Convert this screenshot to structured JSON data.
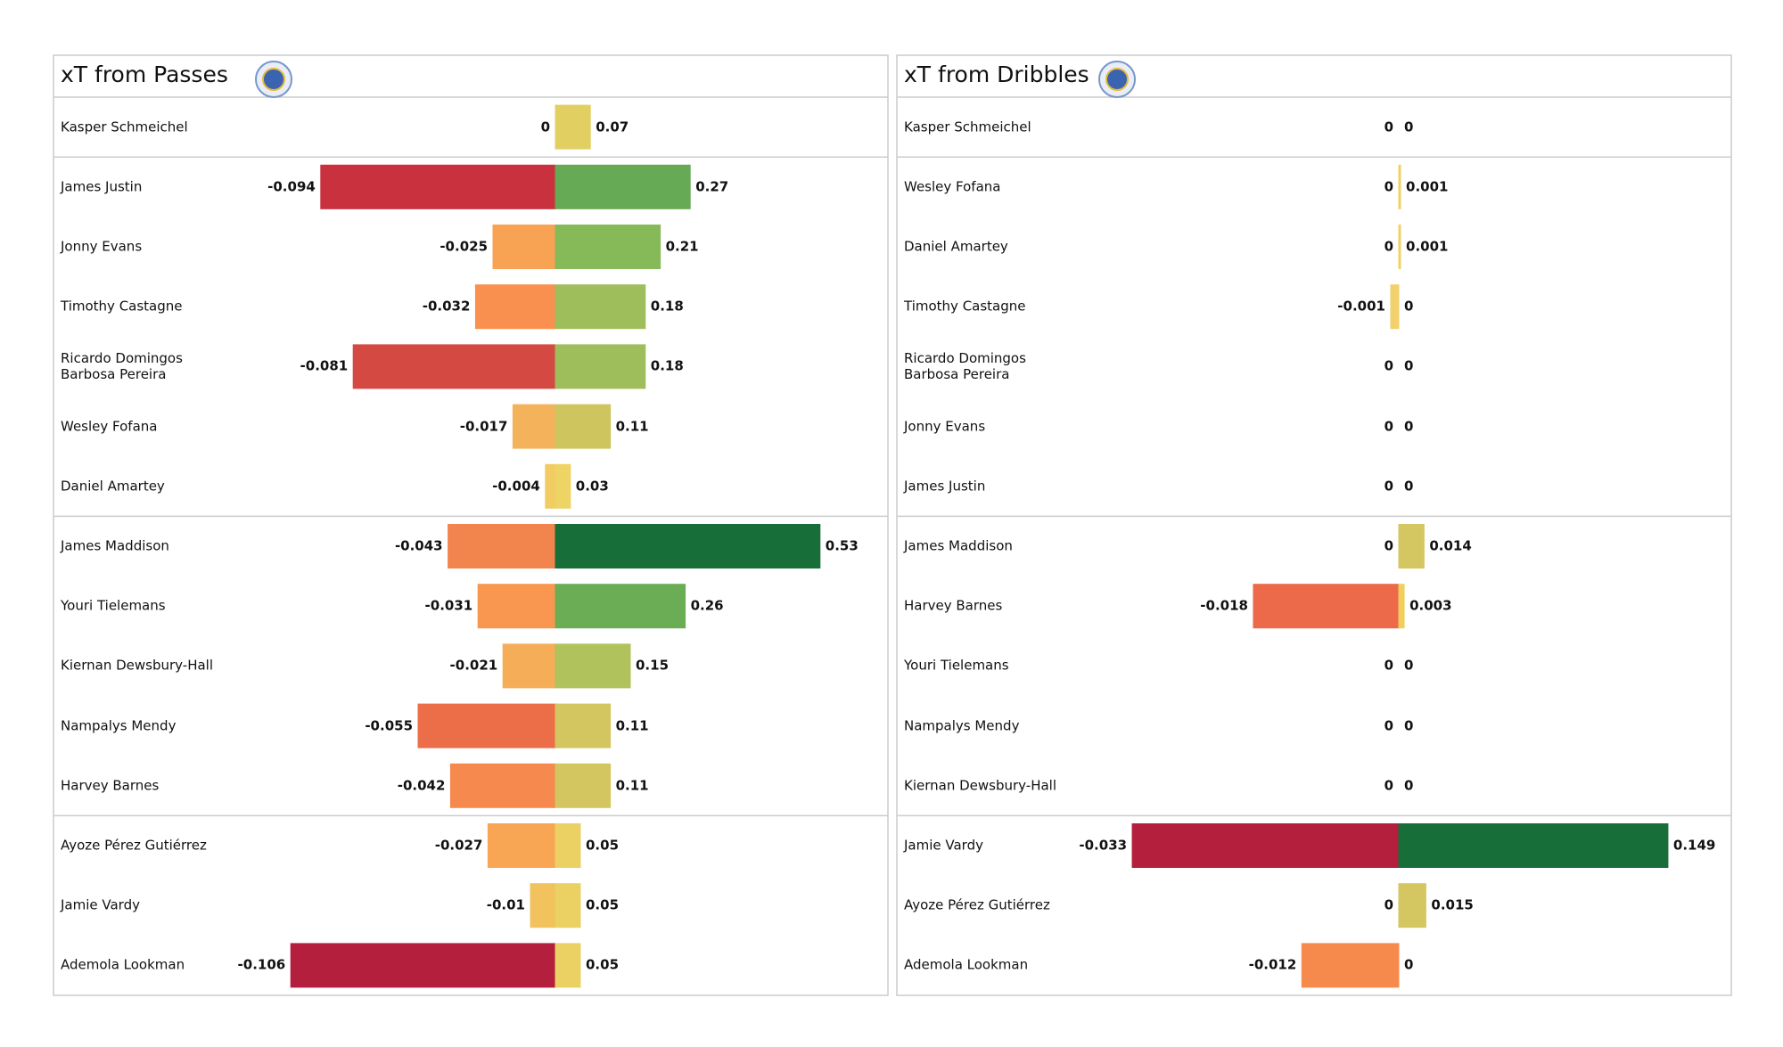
{
  "chart_data": [
    {
      "type": "bar",
      "title": "xT from Passes",
      "categories": [
        "Kasper Schmeichel",
        "James Justin",
        "Jonny Evans",
        "Timothy Castagne",
        "Ricardo Domingos\nBarbosa Pereira",
        "Wesley Fofana",
        "Daniel Amartey",
        "James Maddison",
        "Youri Tielemans",
        "Kiernan Dewsbury-Hall",
        "Nampalys Mendy",
        "Harvey Barnes",
        "Ayoze Pérez Gutiérrez",
        "Jamie Vardy",
        "Ademola Lookman"
      ],
      "series": [
        {
          "values": [
            0,
            -0.094,
            -0.025,
            -0.032,
            -0.081,
            -0.017,
            -0.004,
            -0.043,
            -0.031,
            -0.021,
            -0.055,
            -0.042,
            -0.027,
            -0.01,
            -0.106
          ],
          "colors": [
            "#f3d56b",
            "#c9313f",
            "#f8a254",
            "#f9904f",
            "#d44a43",
            "#f4b35a",
            "#f1cc63",
            "#f2844d",
            "#f9964f",
            "#f5ad58",
            "#ec6e49",
            "#f5894e",
            "#f8a554",
            "#f2c25f",
            "#b41f3d"
          ]
        },
        {
          "values": [
            0.07,
            0.27,
            0.21,
            0.18,
            0.18,
            0.11,
            0.03,
            0.53,
            0.26,
            0.15,
            0.11,
            0.11,
            0.05,
            0.05,
            0.05
          ],
          "colors": [
            "#e2cf62",
            "#67aa55",
            "#86b957",
            "#9ebe5b",
            "#9ebe5b",
            "#cec55e",
            "#eed365",
            "#176e38",
            "#6aad55",
            "#b0c25c",
            "#d3c660",
            "#d3c660",
            "#ebd064",
            "#ebd064",
            "#ebd064"
          ]
        }
      ],
      "xlim": [
        -0.11,
        0.55
      ]
    },
    {
      "type": "bar",
      "title": "xT from Dribbles",
      "categories": [
        "Kasper Schmeichel",
        "Wesley Fofana",
        "Daniel Amartey",
        "Timothy Castagne",
        "Ricardo Domingos\nBarbosa Pereira",
        "Jonny Evans",
        "James Justin",
        "James Maddison",
        "Harvey Barnes",
        "Youri Tielemans",
        "Nampalys Mendy",
        "Kiernan Dewsbury-Hall",
        "Jamie Vardy",
        "Ayoze Pérez Gutiérrez",
        "Ademola Lookman"
      ],
      "series": [
        {
          "values": [
            0,
            0,
            0,
            -0.001,
            0,
            0,
            0,
            0,
            -0.018,
            0,
            0,
            0,
            -0.033,
            0,
            -0.012
          ],
          "colors": [
            "#f3d56b",
            "#f3d56b",
            "#f3d56b",
            "#f3d06b",
            "#f3d56b",
            "#f3d56b",
            "#f3d56b",
            "#f3d56b",
            "#ec6a4a",
            "#f3d56b",
            "#f3d56b",
            "#f3d56b",
            "#b41f3d",
            "#f3d56b",
            "#f68a4c"
          ]
        },
        {
          "values": [
            0,
            0.001,
            0.001,
            0,
            0,
            0,
            0,
            0.014,
            0.003,
            0,
            0,
            0,
            0.149,
            0.015,
            0
          ],
          "colors": [
            "#f3d56b",
            "#f1d164",
            "#f1d164",
            "#f3d56b",
            "#f3d56b",
            "#f3d56b",
            "#f3d56b",
            "#d4c660",
            "#f0cf5f",
            "#f3d56b",
            "#f3d56b",
            "#f3d56b",
            "#176e38",
            "#d4c660",
            "#f3d56b"
          ]
        }
      ],
      "xlim": [
        -0.034,
        0.152
      ]
    }
  ]
}
